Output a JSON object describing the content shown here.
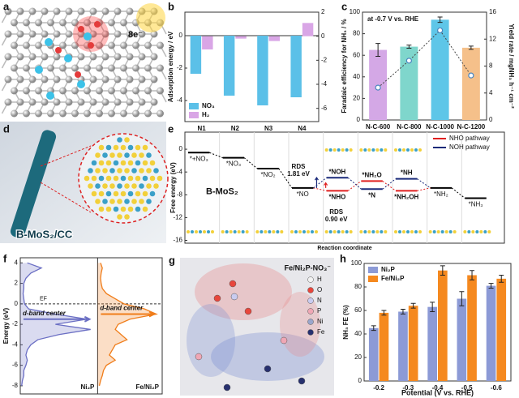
{
  "panel_a": {
    "label": "a",
    "annotation": "8e⁻"
  },
  "panel_d": {
    "label": "d",
    "annotation": "B-MoS₂/CC"
  },
  "panel_g": {
    "label": "g",
    "title": "Fe/Ni₂P-NO₃⁻",
    "legend": [
      {
        "label": "H",
        "color": "#f2f2f2"
      },
      {
        "label": "O",
        "color": "#e8463c"
      },
      {
        "label": "N",
        "color": "#c9ccf0"
      },
      {
        "label": "P",
        "color": "#f0a7b5"
      },
      {
        "label": "Ni",
        "color": "#9aa6cc"
      },
      {
        "label": "Fe",
        "color": "#27306f"
      }
    ]
  },
  "chart_data": [
    {
      "type": "bar",
      "panel_label": "b",
      "ylabel": "Adsorption energy / eV",
      "categories": [
        "N1",
        "N2",
        "N3",
        "N4"
      ],
      "series": [
        {
          "name": "NO₃",
          "color": "#5bc0e8",
          "values": [
            -2.35,
            -3.7,
            -4.3,
            -3.8
          ]
        },
        {
          "name": "H₂",
          "color": "#d9a6e6",
          "values": [
            -1.1,
            -0.2,
            -0.4,
            1.1
          ],
          "axis": "y2"
        }
      ],
      "ylim": [
        -5.3,
        1.45
      ],
      "yticks": [
        0,
        -2,
        -4
      ],
      "y2lim": [
        -7.1,
        2
      ],
      "y2ticks": [
        2,
        0,
        -2,
        -4,
        -6
      ],
      "legend": "lower left"
    },
    {
      "type": "bar",
      "panel_label": "c",
      "ylabel": "Faradaic efficiency for NH₃ / %",
      "y2label": "Yield rate / mgNH₃ h⁻¹ cm⁻²",
      "annotation": "at -0.7 V vs. RHE",
      "categories": [
        "N-C-600",
        "N-C-800",
        "N-C-1000",
        "N-C-1200"
      ],
      "values": [
        65,
        68,
        93,
        67
      ],
      "errors": [
        6,
        1.5,
        2.5,
        1.5
      ],
      "colors": [
        "#d4a8e6",
        "#7fd6cc",
        "#5ec6e8",
        "#f5c08a"
      ],
      "ylim": [
        0,
        100
      ],
      "yticks": [
        0,
        20,
        40,
        60,
        80,
        100
      ],
      "y2lim": [
        0,
        16
      ],
      "y2ticks": [
        0,
        4,
        8,
        12,
        16
      ],
      "y2_series": {
        "values": [
          4.8,
          8.8,
          13.3,
          6.6
        ],
        "color": "#4a86c0"
      }
    },
    {
      "type": "energy-diagram",
      "panel_label": "e",
      "ylabel": "Free energy (eV)",
      "xlabel": "Reaction coordinate",
      "annotation": "B-MoS₂",
      "ylim": [
        -16.5,
        3
      ],
      "yticks": [
        0,
        -4,
        -8,
        -12,
        -16
      ],
      "common": {
        "color": "#000000",
        "labels": [
          "*+NO₃",
          "*NO₃",
          "*NO₂",
          "*NO",
          null,
          null,
          null,
          "*NH₂",
          "*NH₃"
        ],
        "values": [
          -0.6,
          -1.5,
          -3.4,
          -6.8,
          null,
          null,
          null,
          -6.8,
          -8.6
        ]
      },
      "series": [
        {
          "name": "NHO pathway",
          "color": "#e02020",
          "labels": [
            null,
            null,
            null,
            null,
            "*NHO",
            "*NH₂O",
            "*NH₂OH",
            null,
            null
          ],
          "values": [
            null,
            null,
            null,
            null,
            -7.3,
            -5.6,
            -7.3,
            null,
            null
          ]
        },
        {
          "name": "NOH pathway",
          "color": "#1a2a7a",
          "labels": [
            null,
            null,
            null,
            null,
            "*NOH",
            "*N",
            "*NH",
            null,
            null
          ],
          "values": [
            null,
            null,
            null,
            null,
            -5.0,
            -7.0,
            -5.2,
            null,
            null
          ]
        }
      ],
      "rds": [
        {
          "label": "RDS",
          "value": 1.81,
          "value_label": "1.81 eV",
          "color": "#1a2a7a"
        },
        {
          "label": "RDS",
          "value": 0.9,
          "value_label": "0.90 eV",
          "color": "#e02020"
        }
      ]
    },
    {
      "type": "dos",
      "panel_label": "f",
      "ylabel": "Energy (eV)",
      "ef_label": "EF",
      "ylim": [
        -8.8,
        4.5
      ],
      "yticks": [
        4,
        2,
        0,
        -2,
        -4,
        -6,
        -8
      ],
      "xlim": [
        0,
        1.1
      ],
      "energies": [
        4,
        3.5,
        3,
        2.5,
        2,
        1.5,
        1,
        0.5,
        0,
        -0.5,
        -1,
        -1.5,
        -2,
        -2.5,
        -3,
        -3.5,
        -4,
        -4.5,
        -5,
        -5.5,
        -6,
        -6.5,
        -7,
        -7.5,
        -8
      ],
      "series": [
        {
          "name": "Ni₂P",
          "color": "#6b6fc4",
          "d_band_center": -1.5,
          "d_band_label": "d-band center",
          "values": [
            0.1,
            0.3,
            0.15,
            0.08,
            0.05,
            0.05,
            0.04,
            0.05,
            0.06,
            0.12,
            0.5,
            0.95,
            0.5,
            1.0,
            0.55,
            0.25,
            0.15,
            0.1,
            0.08,
            0.1,
            0.08,
            0.05,
            0.05,
            0.03,
            0.02
          ]
        },
        {
          "name": "Fe/Ni₂P",
          "color": "#f07d1a",
          "d_band_center": -1.0,
          "d_band_label": "d-band center",
          "values": [
            0.05,
            0.08,
            0.06,
            0.05,
            0.06,
            0.08,
            0.15,
            0.3,
            0.45,
            0.8,
            1.0,
            0.55,
            0.35,
            0.3,
            0.4,
            0.5,
            0.3,
            0.25,
            0.2,
            0.3,
            0.15,
            0.1,
            0.08,
            0.05,
            0.03
          ]
        }
      ]
    },
    {
      "type": "bar",
      "panel_label": "h",
      "ylabel": "NH₃ FE (%)",
      "xlabel": "Potential (V vs. RHE)",
      "categories": [
        "-0.2",
        "-0.3",
        "-0.4",
        "-0.5",
        "-0.6"
      ],
      "ylim": [
        0,
        100
      ],
      "yticks": [
        0,
        20,
        40,
        60,
        80,
        100
      ],
      "legend": "upper left",
      "series": [
        {
          "name": "Ni₂P",
          "color": "#8c9ad6",
          "values": [
            45,
            59,
            63,
            70,
            81
          ],
          "errors": [
            2,
            2,
            4,
            6,
            2
          ]
        },
        {
          "name": "Fe/Ni₂P",
          "color": "#f5891f",
          "values": [
            58,
            64,
            94,
            90,
            87
          ],
          "errors": [
            2,
            2,
            4,
            4,
            3
          ]
        }
      ]
    }
  ]
}
